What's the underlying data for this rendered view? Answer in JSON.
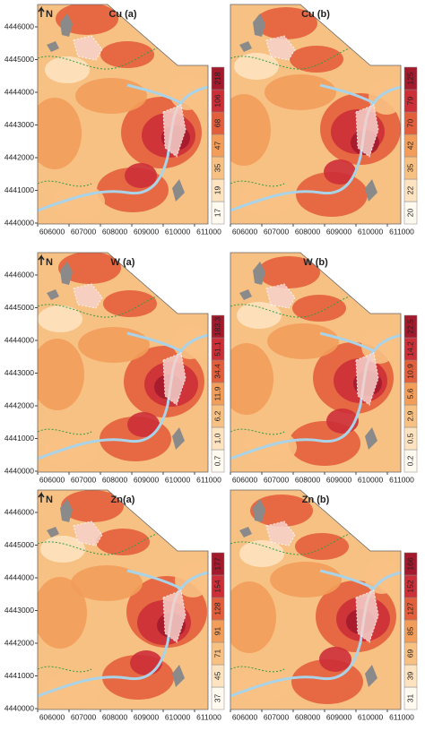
{
  "north_label": "N",
  "y_ticks": [
    4446000,
    4445000,
    4444000,
    4443000,
    4442000,
    4441000,
    4440000
  ],
  "x_ticks": [
    606000,
    607000,
    608000,
    609000,
    610000,
    611000
  ],
  "panels": [
    {
      "label": "Cu (a)",
      "legend": [
        "17",
        "19",
        "35",
        "47",
        "68",
        "106",
        "218"
      ]
    },
    {
      "label": "Cu (b)",
      "legend": [
        "20",
        "22",
        "35",
        "42",
        "70",
        "79",
        "125"
      ]
    },
    {
      "label": "W (a)",
      "legend": [
        "0.7",
        "1.0",
        "6.2",
        "11.9",
        "34.4",
        "51.1",
        "183.3"
      ]
    },
    {
      "label": "W (b)",
      "legend": [
        "0.2",
        "0.5",
        "2.9",
        "5.6",
        "10.9",
        "14.2",
        "22.5"
      ]
    },
    {
      "label": "Zn(a)",
      "legend": [
        "37",
        "45",
        "71",
        "91",
        "128",
        "154",
        "177"
      ]
    },
    {
      "label": "Zn (b)",
      "legend": [
        "31",
        "39",
        "69",
        "85",
        "127",
        "152",
        "166"
      ]
    }
  ]
}
